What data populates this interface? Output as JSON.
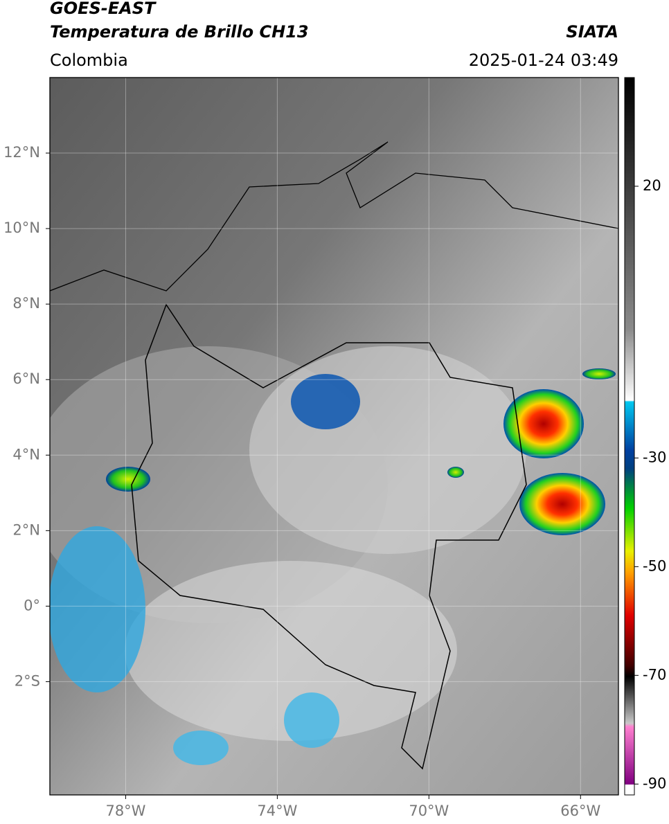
{
  "header": {
    "title": "GOES-EAST",
    "subtitle": "Temperatura de Brillo CH13",
    "source": "SIATA",
    "region": "Colombia",
    "datetime": "2025-01-24 03:49"
  },
  "map": {
    "xlim": [
      -80,
      -65
    ],
    "ylim": [
      -5,
      14
    ],
    "xticks": [
      {
        "value": -78,
        "label": "78°W"
      },
      {
        "value": -74,
        "label": "74°W"
      },
      {
        "value": -70,
        "label": "70°W"
      },
      {
        "value": -66,
        "label": "66°W"
      }
    ],
    "yticks": [
      {
        "value": 12,
        "label": "12°N"
      },
      {
        "value": 10,
        "label": "10°N"
      },
      {
        "value": 8,
        "label": "8°N"
      },
      {
        "value": 6,
        "label": "6°N"
      },
      {
        "value": 4,
        "label": "4°N"
      },
      {
        "value": 2,
        "label": "2°N"
      },
      {
        "value": 0,
        "label": "0°"
      },
      {
        "value": -2,
        "label": "2°S"
      }
    ],
    "grid": true
  },
  "colorbar": {
    "lim": [
      40,
      -92
    ],
    "ticks": [
      20,
      -30,
      -50,
      -70,
      -90
    ]
  }
}
